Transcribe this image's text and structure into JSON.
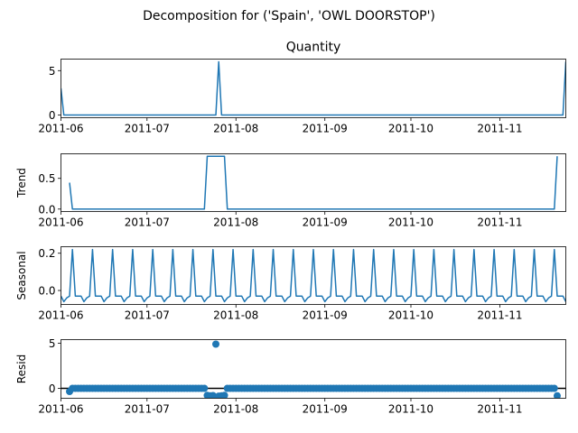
{
  "suptitle": "Decomposition for ('Spain', 'OWL DOORSTOP')",
  "colors": {
    "series": "#1f77b4"
  },
  "chart_data": [
    {
      "type": "line",
      "panel": "observed",
      "title": "Quantity",
      "ylabel": "",
      "x_start": "2011-06-01",
      "x_end": "2011-11-24",
      "xlim": [
        "2011-06-01",
        "2011-11-24"
      ],
      "ylim": [
        -0.3,
        6.3
      ],
      "yticks": [
        0,
        5
      ],
      "xticks": [
        "2011-06",
        "2011-07",
        "2011-08",
        "2011-09",
        "2011-10",
        "2011-11"
      ],
      "x": [
        "2011-06-01",
        "2011-06-02",
        "2011-07-25",
        "2011-07-26",
        "2011-07-27",
        "2011-11-23",
        "2011-11-24"
      ],
      "values": [
        3,
        0,
        0,
        6,
        0,
        0,
        6
      ]
    },
    {
      "type": "line",
      "panel": "trend",
      "title": "",
      "ylabel": "Trend",
      "x_start": "2011-06-01",
      "x_end": "2011-11-24",
      "xlim": [
        "2011-06-01",
        "2011-11-24"
      ],
      "ylim": [
        -0.04,
        0.9
      ],
      "yticks": [
        0.0,
        0.5
      ],
      "xticks": [
        "2011-06",
        "2011-07",
        "2011-08",
        "2011-09",
        "2011-10",
        "2011-11"
      ],
      "x": [
        "2011-06-04",
        "2011-06-05",
        "2011-07-21",
        "2011-07-22",
        "2011-07-28",
        "2011-07-29",
        "2011-11-20",
        "2011-11-21"
      ],
      "values": [
        0.43,
        0.0,
        0.0,
        0.86,
        0.86,
        0.0,
        0.0,
        0.86
      ]
    },
    {
      "type": "line",
      "panel": "seasonal",
      "title": "",
      "ylabel": "Seasonal",
      "x_start": "2011-06-01",
      "x_end": "2011-11-24",
      "xlim": [
        "2011-06-01",
        "2011-11-24"
      ],
      "ylim": [
        -0.075,
        0.235
      ],
      "yticks": [
        0.0,
        0.2
      ],
      "xticks": [
        "2011-06",
        "2011-07",
        "2011-08",
        "2011-09",
        "2011-10",
        "2011-11"
      ],
      "period_days": 7,
      "pattern_start": "2011-06-01",
      "weekly_pattern": [
        -0.03,
        -0.06,
        -0.04,
        -0.03,
        0.22,
        -0.03,
        -0.03
      ]
    },
    {
      "type": "scatter",
      "panel": "resid",
      "title": "",
      "ylabel": "Resid",
      "x_start": "2011-06-01",
      "x_end": "2011-11-24",
      "xlim": [
        "2011-06-01",
        "2011-11-24"
      ],
      "ylim": [
        -1.1,
        5.4
      ],
      "yticks": [
        0,
        5
      ],
      "xticks": [
        "2011-06",
        "2011-07",
        "2011-08",
        "2011-09",
        "2011-10",
        "2011-11"
      ],
      "first_date": "2011-06-04",
      "last_date": "2011-11-21",
      "baseline": 0,
      "outliers": [
        {
          "date": "2011-06-04",
          "value": -0.35
        },
        {
          "date": "2011-07-22",
          "value": -0.78
        },
        {
          "date": "2011-07-23",
          "value": -0.82
        },
        {
          "date": "2011-07-24",
          "value": -0.8
        },
        {
          "date": "2011-07-25",
          "value": 4.9
        },
        {
          "date": "2011-07-26",
          "value": -0.86
        },
        {
          "date": "2011-07-27",
          "value": -0.82
        },
        {
          "date": "2011-07-28",
          "value": -0.78
        },
        {
          "date": "2011-11-21",
          "value": -0.82
        }
      ]
    }
  ]
}
